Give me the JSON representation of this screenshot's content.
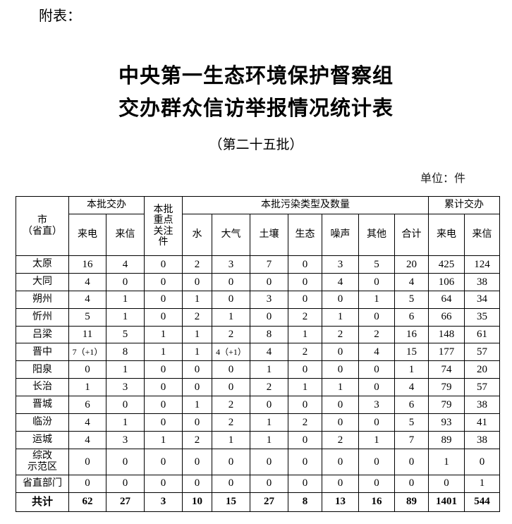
{
  "attachment_label": "附表：",
  "title_line1": "中央第一生态环境保护督察组",
  "title_line2": "交办群众信访举报情况统计表",
  "batch": "（第二十五批）",
  "unit": "单位：件",
  "table": {
    "header_city": "市\n（省直）",
    "header_batch": "本批交办",
    "header_focus": "本批\n重点\n关注\n件",
    "header_pollution": "本批污染类型及数量",
    "header_cumulative": "累计交办",
    "sub_batch": [
      "来电",
      "来信"
    ],
    "sub_pollution": [
      "水",
      "大气",
      "土壤",
      "生态",
      "噪声",
      "其他",
      "合计"
    ],
    "sub_cumulative": [
      "来电",
      "来信"
    ],
    "rows": [
      [
        "太原",
        "16",
        "4",
        "0",
        "2",
        "3",
        "7",
        "0",
        "3",
        "5",
        "20",
        "425",
        "124"
      ],
      [
        "大同",
        "4",
        "0",
        "0",
        "0",
        "0",
        "0",
        "0",
        "4",
        "0",
        "4",
        "106",
        "38"
      ],
      [
        "朔州",
        "4",
        "1",
        "0",
        "1",
        "0",
        "3",
        "0",
        "0",
        "1",
        "5",
        "64",
        "34"
      ],
      [
        "忻州",
        "5",
        "1",
        "0",
        "2",
        "1",
        "0",
        "2",
        "1",
        "0",
        "6",
        "66",
        "35"
      ],
      [
        "吕梁",
        "11",
        "5",
        "1",
        "1",
        "2",
        "8",
        "1",
        "2",
        "2",
        "16",
        "148",
        "61"
      ],
      [
        "晋中",
        "7（+1）",
        "8",
        "1",
        "1",
        "4（+1）",
        "4",
        "2",
        "0",
        "4",
        "15",
        "177",
        "57"
      ],
      [
        "阳泉",
        "0",
        "1",
        "0",
        "0",
        "0",
        "1",
        "0",
        "0",
        "0",
        "1",
        "74",
        "20"
      ],
      [
        "长治",
        "1",
        "3",
        "0",
        "0",
        "0",
        "2",
        "1",
        "1",
        "0",
        "4",
        "79",
        "57"
      ],
      [
        "晋城",
        "6",
        "0",
        "0",
        "1",
        "2",
        "0",
        "0",
        "0",
        "3",
        "6",
        "79",
        "38"
      ],
      [
        "临汾",
        "4",
        "1",
        "0",
        "0",
        "2",
        "1",
        "2",
        "0",
        "0",
        "5",
        "93",
        "41"
      ],
      [
        "运城",
        "4",
        "3",
        "1",
        "2",
        "1",
        "1",
        "0",
        "2",
        "1",
        "7",
        "89",
        "38"
      ],
      [
        "综改\n示范区",
        "0",
        "0",
        "0",
        "0",
        "0",
        "0",
        "0",
        "0",
        "0",
        "0",
        "1",
        "0"
      ],
      [
        "省直部门",
        "0",
        "0",
        "0",
        "0",
        "0",
        "0",
        "0",
        "0",
        "0",
        "0",
        "0",
        "1"
      ]
    ],
    "total": [
      "共计",
      "62",
      "27",
      "3",
      "10",
      "15",
      "27",
      "8",
      "13",
      "16",
      "89",
      "1401",
      "544"
    ]
  }
}
